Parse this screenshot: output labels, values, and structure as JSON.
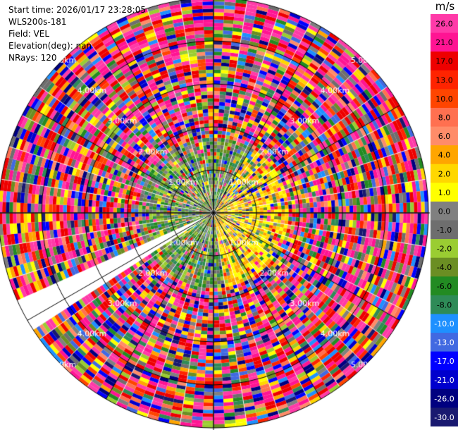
{
  "info": {
    "start_time": "Start time: 2026/01/17 23:28:05",
    "site": "WLS200s-181",
    "field": "Field: VEL",
    "elevation": "Elevation(deg): nan",
    "nrays": "NRays: 120"
  },
  "colorbar": {
    "unit": "m/s",
    "ticks": [
      "26.0",
      "21.0",
      "17.0",
      "13.0",
      "10.0",
      "8.0",
      "6.0",
      "4.0",
      "2.0",
      "1.0",
      "0.0",
      "-1.0",
      "-2.0",
      "-4.0",
      "-6.0",
      "-8.0",
      "-10.0",
      "-13.0",
      "-17.0",
      "-21.0",
      "-26.0",
      "-30.0"
    ],
    "colors": [
      "#ff3aa8",
      "#ff1493",
      "#ee0000",
      "#ff2400",
      "#ff4500",
      "#ff7050",
      "#ff8c69",
      "#ffa500",
      "#ffd700",
      "#ffff00",
      "#808080",
      "#6e6e6e",
      "#9acd32",
      "#6b8e23",
      "#228b22",
      "#2e8b57",
      "#1e90ff",
      "#4169e1",
      "#0000ff",
      "#0000cd",
      "#000080",
      "#191970"
    ]
  },
  "chart_data": {
    "type": "heatmap",
    "title": "",
    "field": "VEL",
    "units": "m/s",
    "nrays": 120,
    "range_rings_km": [
      1.0,
      2.0,
      3.0,
      4.0,
      5.0
    ],
    "range_ring_labels": [
      "1.00km",
      "2.00km",
      "3.00km",
      "4.00km",
      "5.00km"
    ],
    "max_range_km": 5.0,
    "missing_sector_deg": [
      237,
      245
    ],
    "value_scale": [
      -30,
      26
    ],
    "grid": true
  }
}
